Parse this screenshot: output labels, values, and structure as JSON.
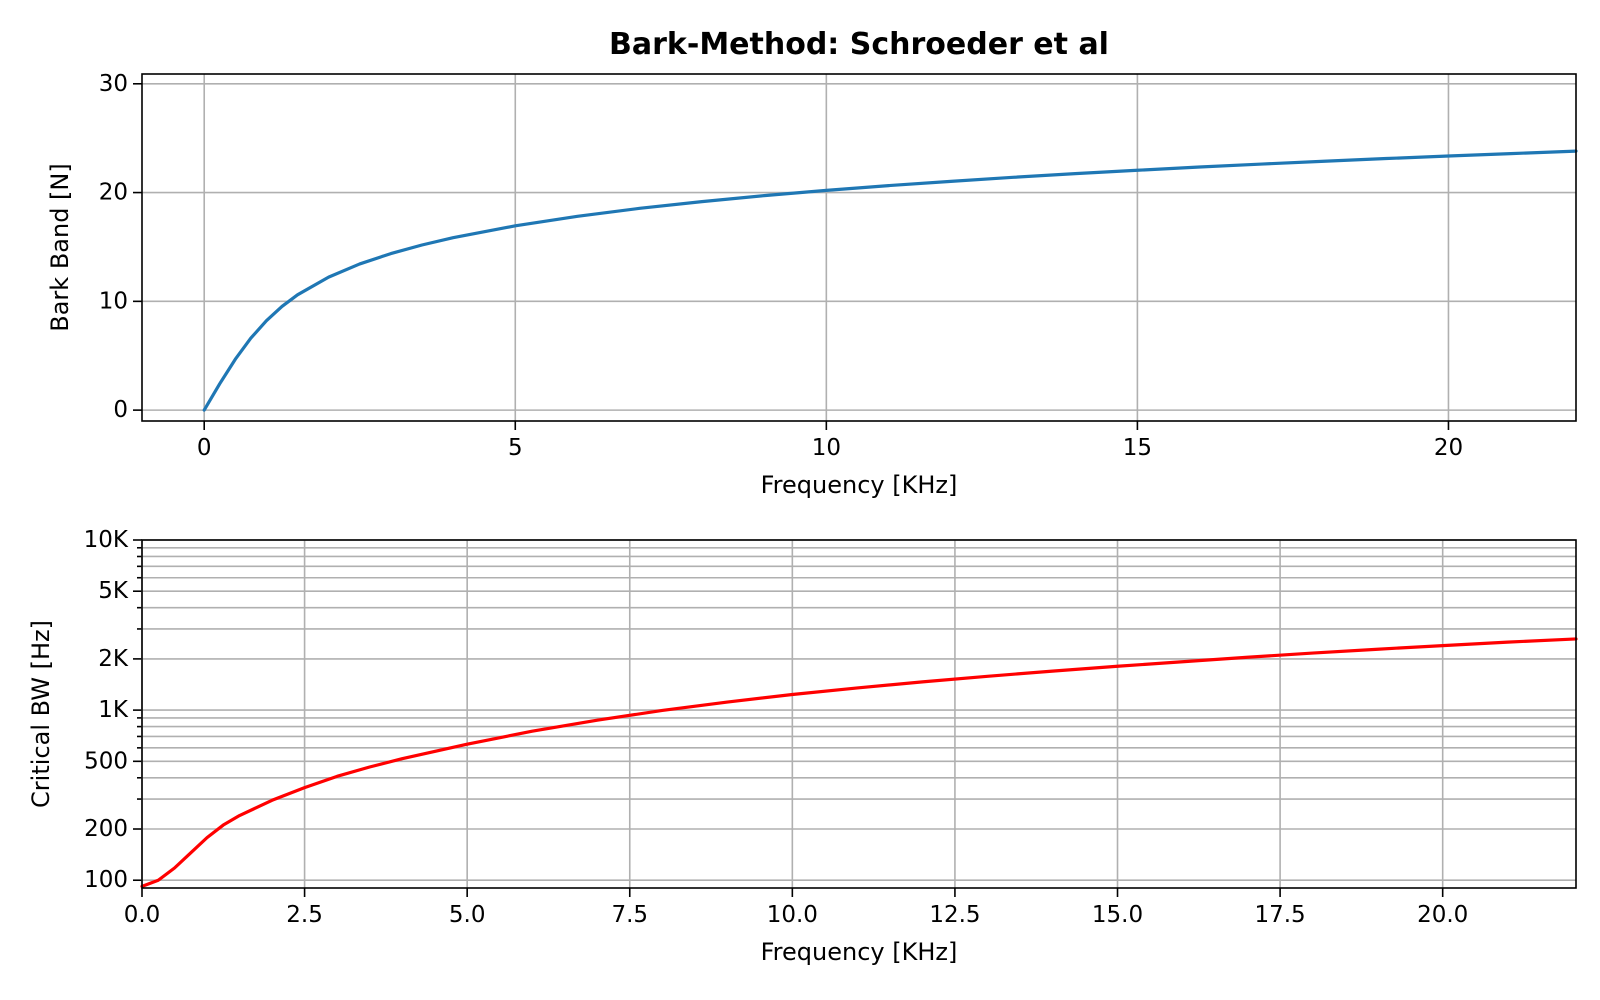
{
  "chart_data": [
    {
      "type": "line",
      "title": "Bark-Method: Schroeder et al",
      "xlabel": "Frequency [KHz]",
      "ylabel": "Bark Band [N]",
      "xlim": [
        -1.0,
        22.05
      ],
      "ylim": [
        -1.0,
        30.9
      ],
      "x_ticks": [
        0,
        5,
        10,
        15,
        20
      ],
      "x_tick_labels": [
        "0",
        "5",
        "10",
        "15",
        "20"
      ],
      "y_ticks": [
        0,
        10,
        20,
        30
      ],
      "y_tick_labels": [
        "0",
        "10",
        "20",
        "30"
      ],
      "y_scale": "linear",
      "grid": true,
      "color": "#1f77b4",
      "series": [
        {
          "x": [
            0,
            0.25,
            0.5,
            0.75,
            1,
            1.25,
            1.5,
            2,
            2.5,
            3,
            3.5,
            4,
            5,
            6,
            7,
            8,
            9,
            10,
            11,
            12,
            13,
            14,
            15,
            16,
            17,
            18,
            19,
            20,
            21,
            22.05
          ],
          "values": [
            0,
            2.43,
            4.68,
            6.62,
            8.22,
            9.53,
            10.6,
            12.23,
            13.44,
            14.39,
            15.18,
            15.85,
            16.94,
            17.82,
            18.55,
            19.17,
            19.72,
            20.2,
            20.64,
            21.03,
            21.4,
            21.74,
            22.05,
            22.35,
            22.62,
            22.88,
            23.13,
            23.36,
            23.58,
            23.81
          ]
        }
      ]
    },
    {
      "type": "line",
      "title": "",
      "xlabel": "Frequency [KHz]",
      "ylabel": "Critical BW [Hz]",
      "xlim": [
        0,
        22.05
      ],
      "ylim": [
        90,
        10000
      ],
      "x_ticks": [
        0,
        2.5,
        5,
        7.5,
        10,
        12.5,
        15,
        17.5,
        20
      ],
      "x_tick_labels": [
        "0.0",
        "2.5",
        "5.0",
        "7.5",
        "10.0",
        "12.5",
        "15.0",
        "17.5",
        "20.0"
      ],
      "y_ticks": [
        100,
        200,
        500,
        1000,
        2000,
        5000,
        10000
      ],
      "y_tick_labels": [
        "100",
        "200",
        "500",
        "1K",
        "2K",
        "5K",
        "10K"
      ],
      "y_minor_ticks": [
        300,
        400,
        600,
        700,
        800,
        900,
        3000,
        4000,
        6000,
        7000,
        8000,
        9000
      ],
      "y_scale": "log",
      "grid": true,
      "color": "#ff0000",
      "series": [
        {
          "x": [
            0,
            0.25,
            0.5,
            0.75,
            1,
            1.25,
            1.5,
            2,
            2.5,
            3,
            3.5,
            4,
            5,
            6,
            7,
            8,
            9,
            10,
            11,
            12,
            13,
            14,
            15,
            16,
            17,
            18,
            19,
            20,
            21,
            22.05
          ],
          "values": [
            92,
            100,
            118,
            145,
            178,
            211,
            240,
            295,
            350,
            408,
            463,
            518,
            630,
            752,
            872,
            995,
            1115,
            1235,
            1350,
            1465,
            1580,
            1695,
            1810,
            1925,
            2045,
            2165,
            2280,
            2395,
            2510,
            2620
          ]
        }
      ]
    }
  ]
}
